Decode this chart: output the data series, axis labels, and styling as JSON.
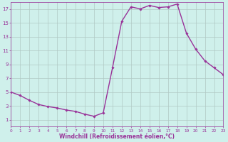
{
  "x": [
    0,
    1,
    2,
    3,
    4,
    5,
    6,
    7,
    8,
    9,
    10,
    11,
    12,
    13,
    14,
    15,
    16,
    17,
    18,
    19,
    20,
    21,
    22,
    23
  ],
  "y": [
    5.0,
    4.5,
    3.8,
    3.2,
    2.9,
    2.7,
    2.4,
    2.2,
    1.8,
    1.5,
    2.0,
    8.5,
    15.2,
    17.3,
    17.0,
    17.5,
    17.2,
    17.3,
    17.7,
    13.5,
    11.2,
    9.5,
    8.5,
    7.5
  ],
  "line_color": "#993399",
  "marker": "D",
  "marker_size": 1.8,
  "bg_color": "#cff0eb",
  "grid_color": "#b0c8c4",
  "xlabel": "Windchill (Refroidissement éolien,°C)",
  "xlabel_color": "#993399",
  "tick_color": "#993399",
  "axis_color": "#993399",
  "xlim": [
    0,
    23
  ],
  "ylim": [
    0,
    18
  ],
  "yticks": [
    1,
    3,
    5,
    7,
    9,
    11,
    13,
    15,
    17
  ],
  "xticks": [
    0,
    1,
    2,
    3,
    4,
    5,
    6,
    7,
    8,
    9,
    10,
    11,
    12,
    13,
    14,
    15,
    16,
    17,
    18,
    19,
    20,
    21,
    22,
    23
  ],
  "tick_fontsize": 5.0,
  "xlabel_fontsize": 5.5,
  "linewidth": 1.0
}
